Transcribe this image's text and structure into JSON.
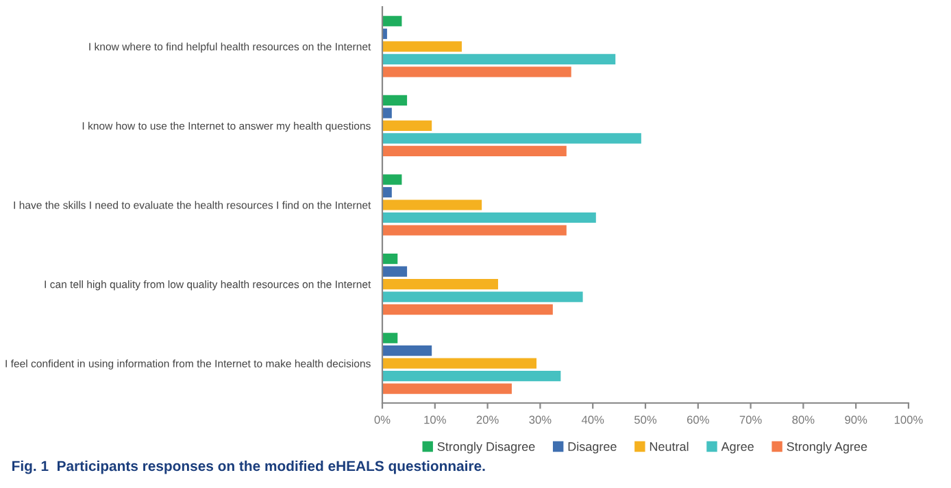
{
  "chart_data": {
    "type": "bar",
    "orientation": "horizontal",
    "categories": [
      "I know where to find helpful health resources on the Internet",
      "I know how to use the Internet to answer my health questions",
      "I have the skills I need to evaluate the health resources I find on the Internet",
      "I can tell high quality from low quality health resources on the Internet",
      "I feel confident in using information from the Internet to make health decisions"
    ],
    "series": [
      {
        "name": "Strongly Disagree",
        "color": "#1fae5e",
        "values": [
          3.7,
          4.7,
          3.7,
          2.9,
          2.9
        ]
      },
      {
        "name": "Disagree",
        "color": "#3f6fb0",
        "values": [
          0.9,
          1.8,
          1.8,
          4.7,
          9.4
        ]
      },
      {
        "name": "Neutral",
        "color": "#f5b120",
        "values": [
          15.1,
          9.4,
          18.9,
          22.0,
          29.3
        ]
      },
      {
        "name": "Agree",
        "color": "#45c1c1",
        "values": [
          44.3,
          49.2,
          40.6,
          38.1,
          33.9
        ]
      },
      {
        "name": "Strongly Agree",
        "color": "#f47b4a",
        "values": [
          35.9,
          35.0,
          35.0,
          32.4,
          24.6
        ]
      }
    ],
    "xlim": [
      0,
      100
    ],
    "xticks": [
      {
        "value": 0,
        "label": "0%"
      },
      {
        "value": 10,
        "label": "10%"
      },
      {
        "value": 20,
        "label": "20%"
      },
      {
        "value": 30,
        "label": "30%"
      },
      {
        "value": 40,
        "label": "40%"
      },
      {
        "value": 50,
        "label": "50%"
      },
      {
        "value": 60,
        "label": "60%"
      },
      {
        "value": 70,
        "label": "70%"
      },
      {
        "value": 80,
        "label": "80%"
      },
      {
        "value": 90,
        "label": "90%"
      },
      {
        "value": 100,
        "label": "100%"
      }
    ],
    "grid": false,
    "legend": "bottom",
    "annotations": [
      "Fig. 1  Participants responses on the modified eHEALS questionnaire."
    ]
  }
}
